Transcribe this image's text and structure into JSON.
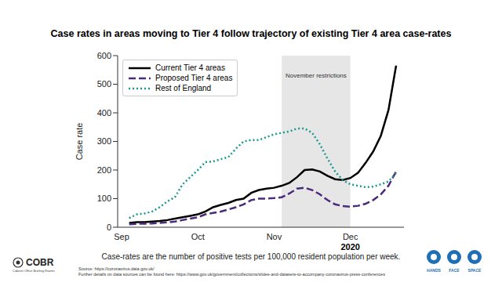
{
  "chart_data": {
    "type": "line",
    "title": "Case rates in areas moving to Tier 4 follow trajectory of existing Tier 4 area case-rates",
    "caption": "Case-rates are the number of positive tests per 100,000 resident population per week.",
    "sources": [
      "Source: https://coronavirus.data.gov.uk/",
      "Further details on data sources can be found here: https://www.gov.uk/government/collections/slides-and-datasets-to-accompany-coronavirus-press-conferences"
    ],
    "logos": [
      "COBR",
      "Cabinet Office Briefing Rooms",
      "HANDS",
      "FACE",
      "SPACE"
    ],
    "y_label": "Case rate",
    "categories": [
      "Sep",
      null,
      null,
      null,
      null,
      null,
      null,
      null,
      null,
      null,
      "Oct",
      null,
      null,
      null,
      null,
      null,
      null,
      null,
      null,
      null,
      "Nov",
      null,
      null,
      null,
      null,
      null,
      null,
      null,
      null,
      null,
      "Dec\n2020",
      null,
      null,
      null,
      null,
      null,
      null
    ],
    "series": [
      {
        "name": "Current Tier 4 areas",
        "color": "#000000",
        "line_style": "solid",
        "values": [
          null,
          15,
          18,
          18,
          20,
          22,
          25,
          30,
          35,
          40,
          45,
          55,
          70,
          78,
          85,
          95,
          100,
          120,
          130,
          135,
          138,
          145,
          155,
          175,
          200,
          202,
          195,
          180,
          168,
          165,
          172,
          190,
          225,
          265,
          320,
          410,
          565
        ]
      },
      {
        "name": "Proposed Tier 4 areas",
        "color": "#4b2a7b",
        "line_style": "dashed",
        "values": [
          null,
          10,
          12,
          12,
          13,
          15,
          17,
          20,
          25,
          30,
          35,
          45,
          50,
          55,
          62,
          70,
          80,
          95,
          100,
          100,
          102,
          105,
          118,
          135,
          138,
          130,
          115,
          95,
          80,
          74,
          72,
          75,
          82,
          95,
          115,
          145,
          195
        ]
      },
      {
        "name": "Rest of England",
        "color": "#1a9a8f",
        "line_style": "dotted",
        "values": [
          null,
          32,
          45,
          48,
          55,
          70,
          90,
          105,
          150,
          175,
          200,
          228,
          230,
          238,
          245,
          275,
          300,
          305,
          305,
          315,
          325,
          330,
          335,
          345,
          345,
          330,
          290,
          240,
          195,
          165,
          150,
          145,
          140,
          142,
          150,
          160,
          190
        ]
      }
    ],
    "ylim": [
      0,
      600
    ],
    "yticks": [
      0,
      100,
      200,
      300,
      400,
      500,
      600
    ],
    "grid": false,
    "legend": "upper left",
    "annotations": [
      {
        "text": "November restrictions",
        "x_start": 21,
        "x_end": 30
      }
    ]
  }
}
